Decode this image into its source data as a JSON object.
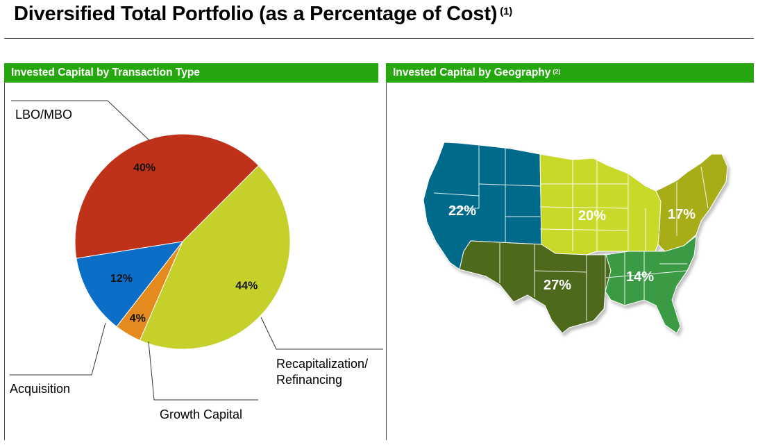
{
  "title": "Diversified Total Portfolio (as a Percentage of Cost)",
  "title_footnote": "(1)",
  "colors": {
    "header_green": "#27a70f",
    "lbo": "#c0311a",
    "recap": "#c5d12a",
    "growth": "#e48a1f",
    "acquisition": "#0b6ec7",
    "west": "#006b8a",
    "midwest": "#c9d92a",
    "northeast": "#a7ad17",
    "southwest": "#4e6b1f",
    "southeast": "#3a9b44"
  },
  "chart_data": [
    {
      "type": "pie",
      "title": "Invested Capital by Transaction Type",
      "slices": [
        {
          "label": "LBO/MBO",
          "value": 40,
          "display": "40%",
          "color": "#c0311a"
        },
        {
          "label": "Recapitalization/ Refinancing",
          "value": 44,
          "display": "44%",
          "color": "#c5d12a"
        },
        {
          "label": "Growth Capital",
          "value": 4,
          "display": "4%",
          "color": "#e48a1f"
        },
        {
          "label": "Acquisition",
          "value": 12,
          "display": "12%",
          "color": "#0b6ec7"
        }
      ]
    },
    {
      "type": "map",
      "title": "Invested Capital by Geography",
      "title_footnote": "(2)",
      "regions": [
        {
          "region": "West",
          "value": 22,
          "display": "22%"
        },
        {
          "region": "Midwest",
          "value": 20,
          "display": "20%"
        },
        {
          "region": "Northeast",
          "value": 17,
          "display": "17%"
        },
        {
          "region": "Southwest",
          "value": 27,
          "display": "27%"
        },
        {
          "region": "Southeast",
          "value": 14,
          "display": "14%"
        }
      ]
    }
  ]
}
